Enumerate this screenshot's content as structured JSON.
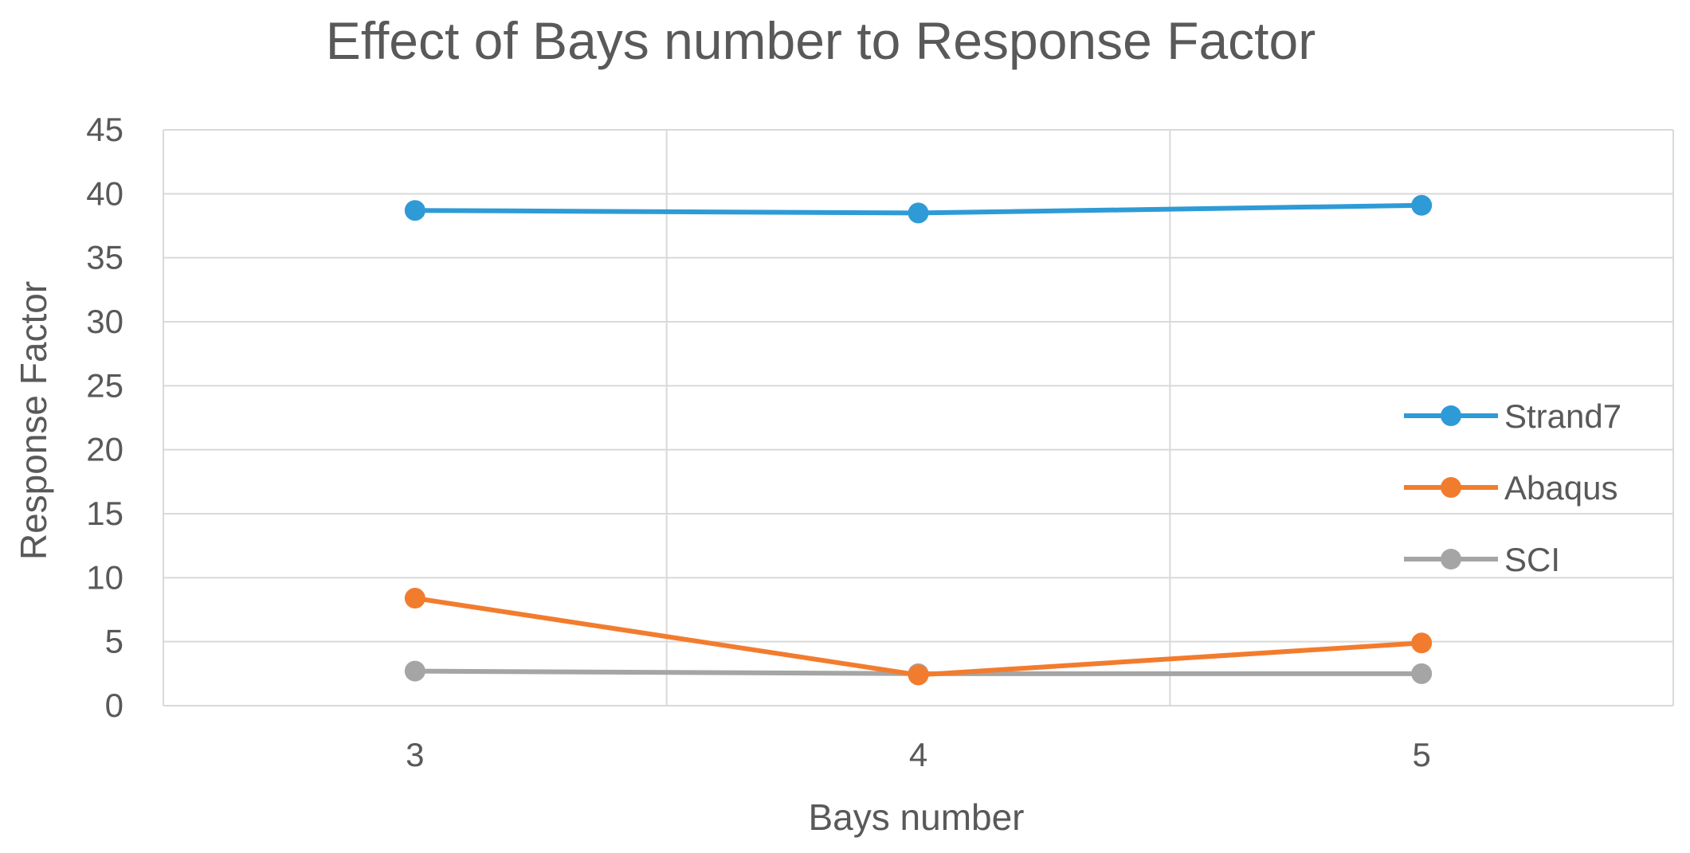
{
  "chart_data": {
    "type": "line",
    "title": "Effect of Bays number to Response Factor",
    "xlabel": "Bays number",
    "ylabel": "Response Factor",
    "categories": [
      "3",
      "4",
      "5"
    ],
    "ylim": [
      0,
      45
    ],
    "yticks": [
      "0",
      "5",
      "10",
      "15",
      "20",
      "25",
      "30",
      "35",
      "40",
      "45"
    ],
    "grid": true,
    "legend_position": "right",
    "series": [
      {
        "name": "Strand7",
        "values": [
          38.7,
          38.5,
          39.1
        ],
        "color": "#2E9BD6"
      },
      {
        "name": "Abaqus",
        "values": [
          8.4,
          2.4,
          4.9
        ],
        "color": "#F27C2E"
      },
      {
        "name": "SCI",
        "values": [
          2.7,
          2.5,
          2.5
        ],
        "color": "#A5A5A5"
      }
    ]
  }
}
